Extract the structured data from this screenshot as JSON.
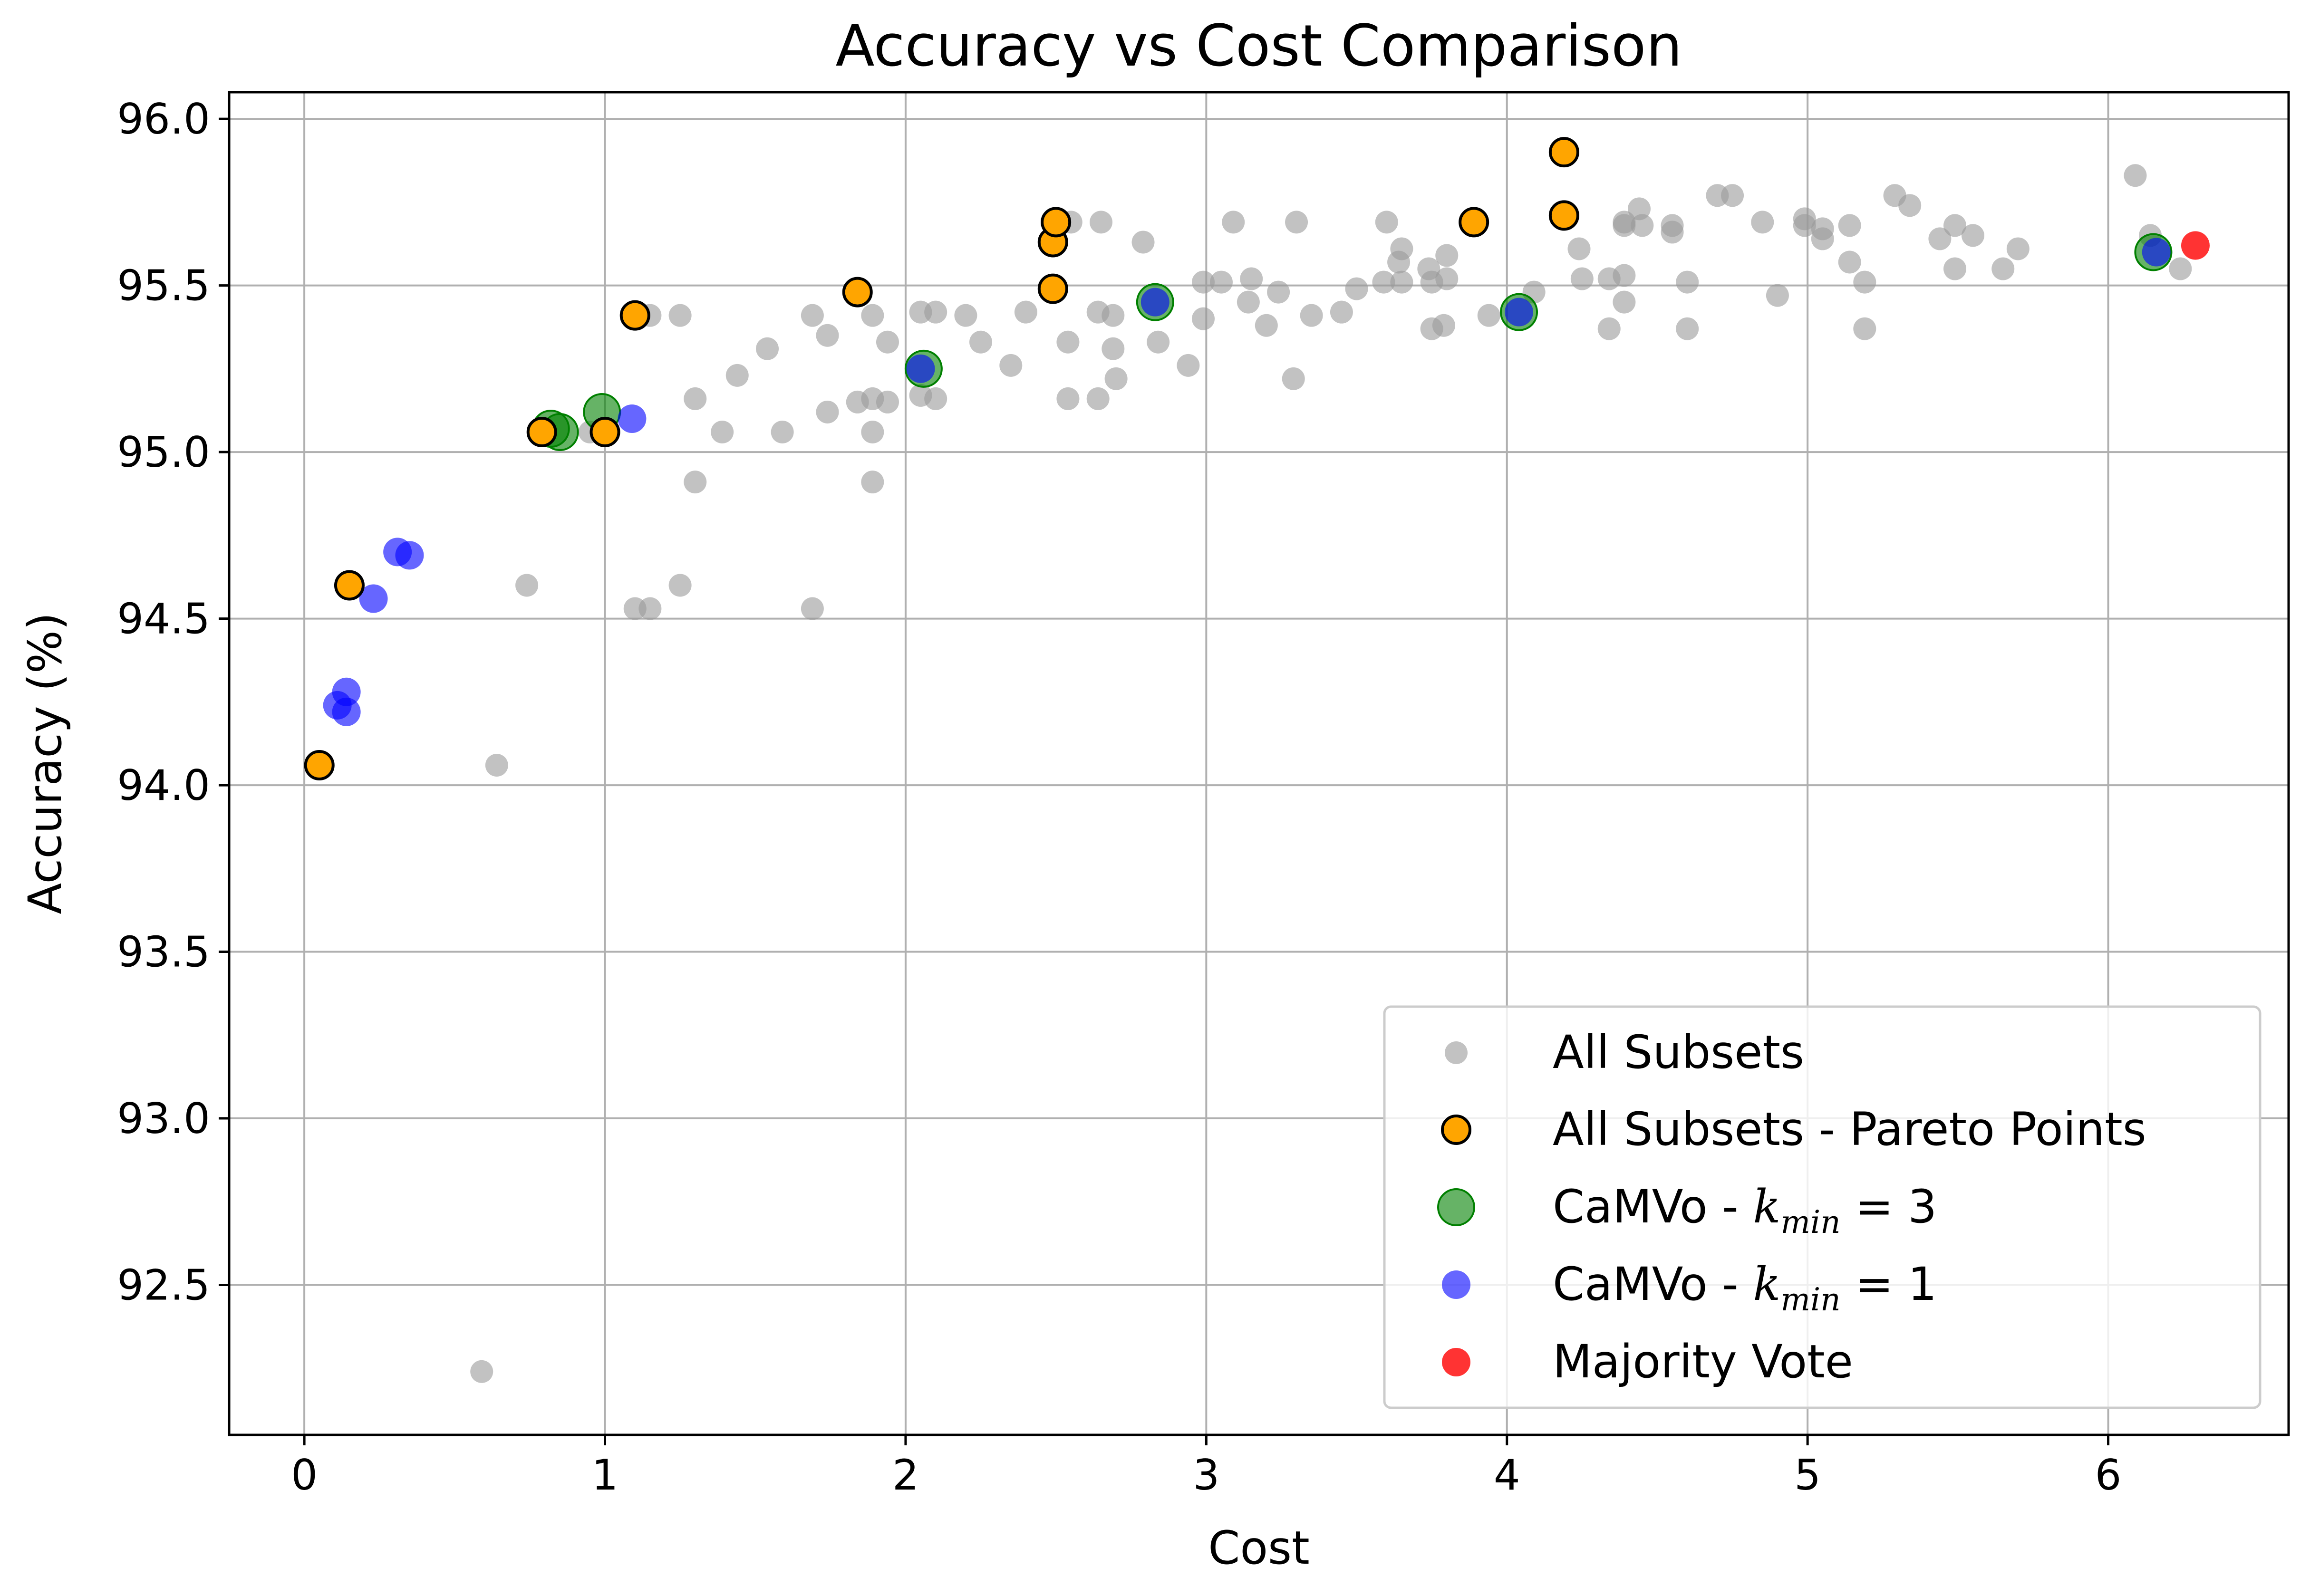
{
  "chart_data": {
    "type": "scatter",
    "title": "Accuracy vs Cost Comparison",
    "xlabel": "Cost",
    "ylabel": "Accuracy (%)",
    "xlim": [
      -0.25,
      6.6
    ],
    "ylim": [
      92.05,
      96.08
    ],
    "xticks": [
      0,
      1,
      2,
      3,
      4,
      5,
      6
    ],
    "yticks": [
      92.5,
      93.0,
      93.5,
      94.0,
      94.5,
      95.0,
      95.5,
      96.0
    ],
    "xtick_labels": [
      "0",
      "1",
      "2",
      "3",
      "4",
      "5",
      "6"
    ],
    "ytick_labels": [
      "92.5",
      "93.0",
      "93.5",
      "94.0",
      "94.5",
      "95.0",
      "95.5",
      "96.0"
    ],
    "grid": true,
    "legend_position": "lower-right",
    "colors": {
      "all_subsets": "#999999",
      "pareto": "#ffa500",
      "camvo_k3": "#008000",
      "camvo_k1": "#0000ff",
      "majority": "#ff0000"
    },
    "series": [
      {
        "name": "All Subsets",
        "legend_label": "All Subsets",
        "points": [
          [
            0.59,
            92.24
          ],
          [
            0.64,
            94.06
          ],
          [
            0.74,
            94.6
          ],
          [
            0.95,
            95.06
          ],
          [
            1.1,
            94.53
          ],
          [
            1.15,
            94.53
          ],
          [
            1.15,
            95.41
          ],
          [
            1.25,
            95.41
          ],
          [
            1.25,
            94.6
          ],
          [
            1.3,
            95.16
          ],
          [
            1.3,
            94.91
          ],
          [
            1.39,
            95.06
          ],
          [
            1.44,
            95.23
          ],
          [
            1.54,
            95.31
          ],
          [
            1.59,
            95.06
          ],
          [
            1.69,
            95.41
          ],
          [
            1.69,
            94.53
          ],
          [
            1.74,
            95.35
          ],
          [
            1.74,
            95.12
          ],
          [
            1.84,
            95.15
          ],
          [
            1.89,
            95.41
          ],
          [
            1.89,
            95.16
          ],
          [
            1.89,
            95.06
          ],
          [
            1.89,
            94.91
          ],
          [
            1.94,
            95.33
          ],
          [
            1.94,
            95.15
          ],
          [
            2.05,
            95.42
          ],
          [
            2.05,
            95.17
          ],
          [
            2.1,
            95.42
          ],
          [
            2.1,
            95.16
          ],
          [
            2.2,
            95.41
          ],
          [
            2.25,
            95.33
          ],
          [
            2.35,
            95.26
          ],
          [
            2.4,
            95.42
          ],
          [
            2.55,
            95.69
          ],
          [
            2.54,
            95.33
          ],
          [
            2.54,
            95.16
          ],
          [
            2.64,
            95.42
          ],
          [
            2.64,
            95.16
          ],
          [
            2.65,
            95.69
          ],
          [
            2.69,
            95.41
          ],
          [
            2.69,
            95.31
          ],
          [
            2.7,
            95.22
          ],
          [
            2.79,
            95.63
          ],
          [
            2.84,
            95.33
          ],
          [
            2.94,
            95.26
          ],
          [
            2.99,
            95.51
          ],
          [
            2.99,
            95.4
          ],
          [
            3.05,
            95.51
          ],
          [
            3.09,
            95.69
          ],
          [
            3.14,
            95.45
          ],
          [
            3.15,
            95.52
          ],
          [
            3.2,
            95.38
          ],
          [
            3.24,
            95.48
          ],
          [
            3.29,
            95.22
          ],
          [
            3.3,
            95.69
          ],
          [
            3.35,
            95.41
          ],
          [
            3.45,
            95.42
          ],
          [
            3.5,
            95.49
          ],
          [
            3.59,
            95.51
          ],
          [
            3.6,
            95.69
          ],
          [
            3.64,
            95.57
          ],
          [
            3.65,
            95.61
          ],
          [
            3.65,
            95.51
          ],
          [
            3.74,
            95.55
          ],
          [
            3.75,
            95.51
          ],
          [
            3.75,
            95.37
          ],
          [
            3.8,
            95.59
          ],
          [
            3.8,
            95.52
          ],
          [
            3.79,
            95.38
          ],
          [
            3.94,
            95.41
          ],
          [
            4.09,
            95.48
          ],
          [
            4.24,
            95.61
          ],
          [
            4.25,
            95.52
          ],
          [
            4.34,
            95.52
          ],
          [
            4.34,
            95.37
          ],
          [
            4.39,
            95.69
          ],
          [
            4.39,
            95.68
          ],
          [
            4.39,
            95.53
          ],
          [
            4.39,
            95.45
          ],
          [
            4.44,
            95.73
          ],
          [
            4.45,
            95.68
          ],
          [
            4.55,
            95.68
          ],
          [
            4.55,
            95.66
          ],
          [
            4.6,
            95.51
          ],
          [
            4.6,
            95.37
          ],
          [
            4.7,
            95.77
          ],
          [
            4.75,
            95.77
          ],
          [
            4.85,
            95.69
          ],
          [
            4.9,
            95.47
          ],
          [
            4.99,
            95.7
          ],
          [
            4.99,
            95.68
          ],
          [
            5.05,
            95.67
          ],
          [
            5.05,
            95.64
          ],
          [
            5.14,
            95.68
          ],
          [
            5.14,
            95.57
          ],
          [
            5.19,
            95.51
          ],
          [
            5.19,
            95.37
          ],
          [
            5.29,
            95.77
          ],
          [
            5.34,
            95.74
          ],
          [
            5.44,
            95.64
          ],
          [
            5.49,
            95.68
          ],
          [
            5.49,
            95.55
          ],
          [
            5.55,
            95.65
          ],
          [
            5.65,
            95.55
          ],
          [
            5.7,
            95.61
          ],
          [
            6.09,
            95.83
          ],
          [
            6.14,
            95.65
          ],
          [
            6.24,
            95.55
          ]
        ]
      },
      {
        "name": "All Subsets - Pareto Points",
        "legend_label": "All Subsets - Pareto Points",
        "points": [
          [
            0.05,
            94.06
          ],
          [
            0.15,
            94.6
          ],
          [
            0.79,
            95.06
          ],
          [
            1.0,
            95.06
          ],
          [
            1.1,
            95.41
          ],
          [
            1.84,
            95.48
          ],
          [
            2.49,
            95.49
          ],
          [
            2.49,
            95.63
          ],
          [
            2.5,
            95.69
          ],
          [
            3.89,
            95.69
          ],
          [
            4.19,
            95.71
          ],
          [
            4.19,
            95.9
          ]
        ]
      },
      {
        "name": "CaMVo - k_min = 3",
        "legend_prefix": "CaMVo - ",
        "legend_math_base": "k",
        "legend_math_sub": "min",
        "legend_math_rest": " = 3",
        "points": [
          [
            0.82,
            95.07
          ],
          [
            0.85,
            95.06
          ],
          [
            0.99,
            95.12
          ],
          [
            2.06,
            95.25
          ],
          [
            2.83,
            95.45
          ],
          [
            4.04,
            95.42
          ],
          [
            6.15,
            95.6
          ]
        ]
      },
      {
        "name": "CaMVo - k_min = 1",
        "legend_prefix": "CaMVo - ",
        "legend_math_base": "k",
        "legend_math_sub": "min",
        "legend_math_rest": " = 1",
        "points": [
          [
            0.11,
            94.24
          ],
          [
            0.14,
            94.28
          ],
          [
            0.14,
            94.22
          ],
          [
            0.23,
            94.56
          ],
          [
            0.31,
            94.7
          ],
          [
            0.35,
            94.69
          ],
          [
            1.09,
            95.1
          ],
          [
            2.05,
            95.25
          ],
          [
            2.83,
            95.45
          ],
          [
            4.04,
            95.42
          ],
          [
            6.16,
            95.6
          ]
        ]
      },
      {
        "name": "Majority Vote",
        "legend_label": "Majority Vote",
        "points": [
          [
            6.29,
            95.62
          ]
        ]
      }
    ]
  }
}
